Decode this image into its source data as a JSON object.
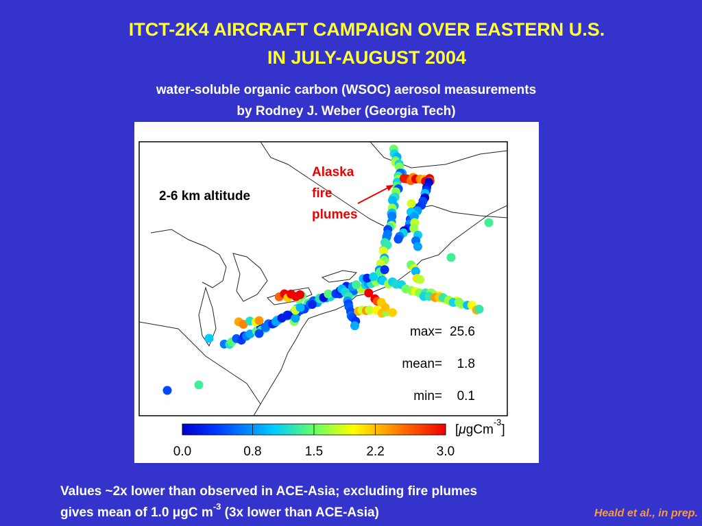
{
  "header": {
    "title_lines": [
      "ITCT-2K4 AIRCRAFT CAMPAIGN OVER EASTERN U.S.",
      "IN JULY-AUGUST 2004"
    ],
    "subtitle_lines": [
      "water-soluble organic carbon (WSOC) aerosol measurements",
      "by Rodney J. Weber (Georgia Tech)"
    ]
  },
  "map": {
    "altitude_label": "2-6 km altitude",
    "annotation_lines": [
      "Alaska",
      "fire",
      "plumes"
    ],
    "stats": [
      {
        "label": "max=",
        "value": 25.6
      },
      {
        "label": "mean=",
        "value": 1.8
      },
      {
        "label": "min=",
        "value": 0.1
      }
    ],
    "colorbar": {
      "clim": [
        0,
        3
      ],
      "ticks": [
        {
          "value": 0,
          "label": "0.0"
        },
        0.8,
        1.5,
        2.2,
        {
          "value": 3,
          "label": "3.0"
        }
      ],
      "unit": {
        "open": "[",
        "mu": "μ",
        "main": "gCm",
        "sup": "-3",
        "close": "]"
      }
    }
  },
  "footer": {
    "line1": "Values ~2x lower than observed in ACE-Asia; excluding fire plumes",
    "line2": {
      "pre": "gives mean of 1.0 μgC m",
      "sup": "-3",
      "post": " (3x lower than ACE-Asia)"
    },
    "citation": "Heald et al., in prep."
  }
}
